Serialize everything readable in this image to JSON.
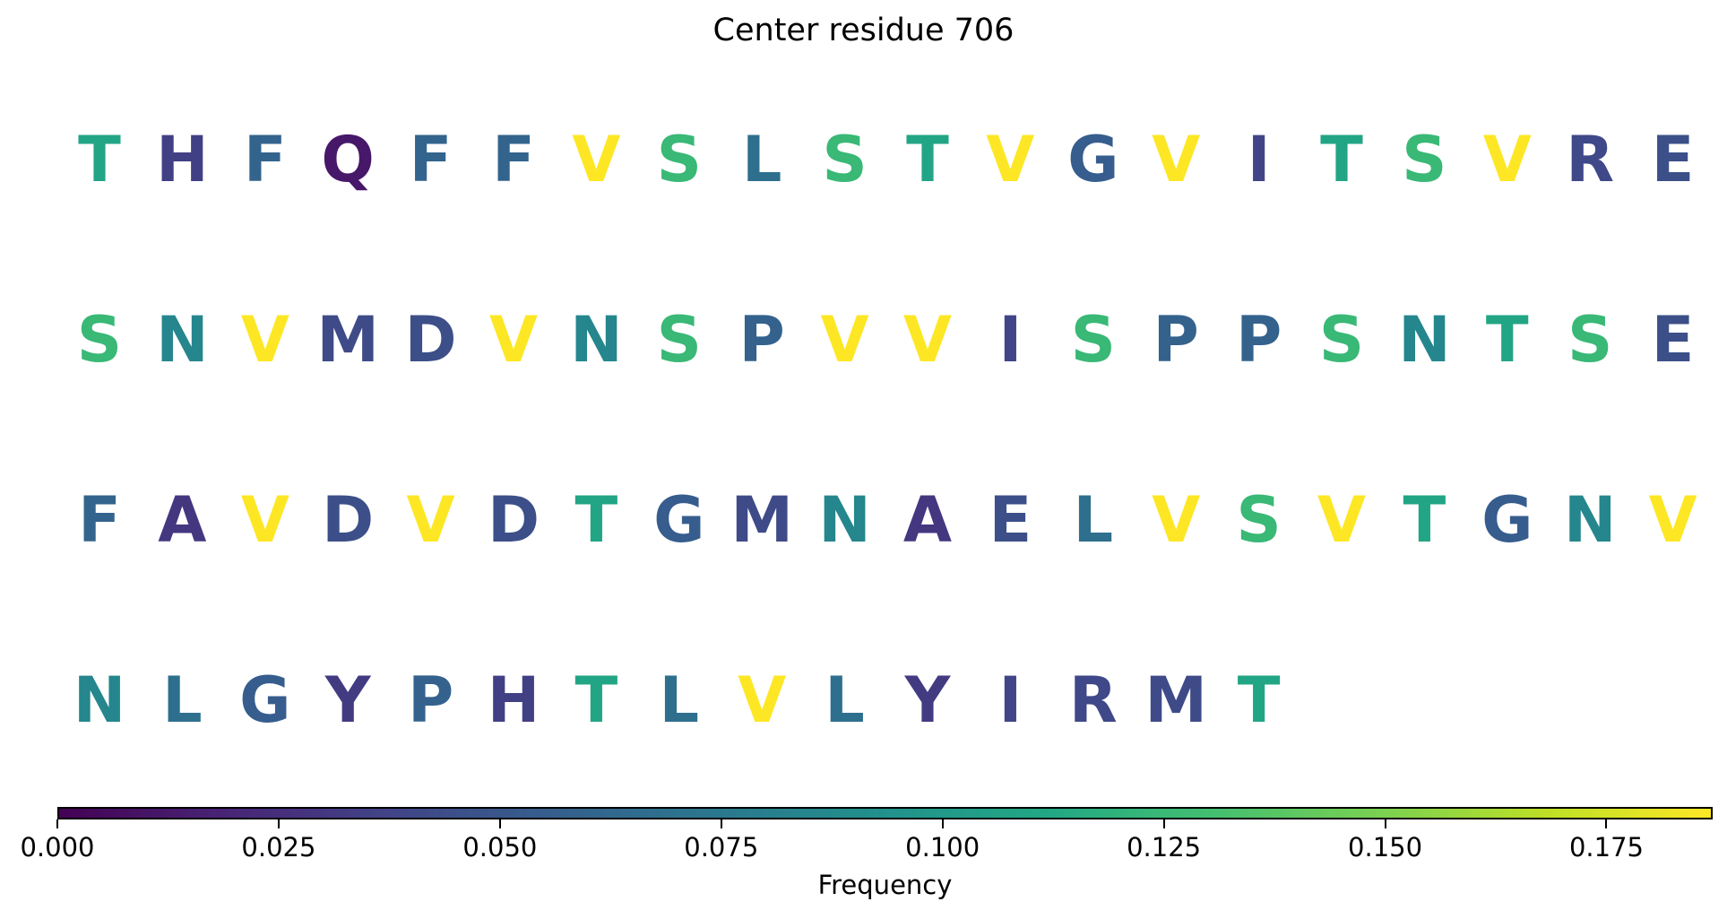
{
  "chart_data": {
    "type": "heatmap",
    "title": "Center residue 706",
    "colorbar": {
      "label": "Frequency",
      "colormap": "viridis",
      "range": [
        0.0,
        0.187
      ],
      "ticks": [
        0.0,
        0.025,
        0.05,
        0.075,
        0.1,
        0.125,
        0.15,
        0.175
      ],
      "tick_labels": [
        "0.000",
        "0.025",
        "0.050",
        "0.075",
        "0.100",
        "0.125",
        "0.150",
        "0.175"
      ]
    },
    "rows": [
      {
        "residues": [
          "T",
          "H",
          "F",
          "Q",
          "F",
          "F",
          "V",
          "S",
          "L",
          "S",
          "T",
          "V",
          "G",
          "V",
          "I",
          "T",
          "S",
          "V",
          "R",
          "E"
        ],
        "frequencies": [
          0.11,
          0.035,
          0.06,
          0.012,
          0.06,
          0.06,
          0.187,
          0.125,
          0.068,
          0.125,
          0.11,
          0.187,
          0.055,
          0.187,
          0.038,
          0.11,
          0.125,
          0.187,
          0.04,
          0.045
        ]
      },
      {
        "residues": [
          "S",
          "N",
          "V",
          "M",
          "D",
          "V",
          "N",
          "S",
          "P",
          "V",
          "V",
          "I",
          "S",
          "P",
          "P",
          "S",
          "N",
          "T",
          "S",
          "E"
        ],
        "frequencies": [
          0.125,
          0.085,
          0.187,
          0.042,
          0.045,
          0.187,
          0.085,
          0.125,
          0.058,
          0.187,
          0.187,
          0.038,
          0.125,
          0.058,
          0.058,
          0.125,
          0.085,
          0.11,
          0.125,
          0.045
        ]
      },
      {
        "residues": [
          "F",
          "A",
          "V",
          "D",
          "V",
          "D",
          "T",
          "G",
          "M",
          "N",
          "A",
          "E",
          "L",
          "V",
          "S",
          "V",
          "T",
          "G",
          "N",
          "V"
        ],
        "frequencies": [
          0.06,
          0.03,
          0.187,
          0.045,
          0.187,
          0.045,
          0.11,
          0.055,
          0.042,
          0.085,
          0.03,
          0.045,
          0.068,
          0.187,
          0.125,
          0.187,
          0.11,
          0.055,
          0.085,
          0.187
        ]
      },
      {
        "residues": [
          "N",
          "L",
          "G",
          "Y",
          "P",
          "H",
          "T",
          "L",
          "V",
          "L",
          "Y",
          "I",
          "R",
          "M",
          "T"
        ],
        "frequencies": [
          0.085,
          0.068,
          0.055,
          0.032,
          0.058,
          0.035,
          0.11,
          0.068,
          0.187,
          0.068,
          0.032,
          0.038,
          0.04,
          0.042,
          0.11
        ]
      }
    ]
  }
}
